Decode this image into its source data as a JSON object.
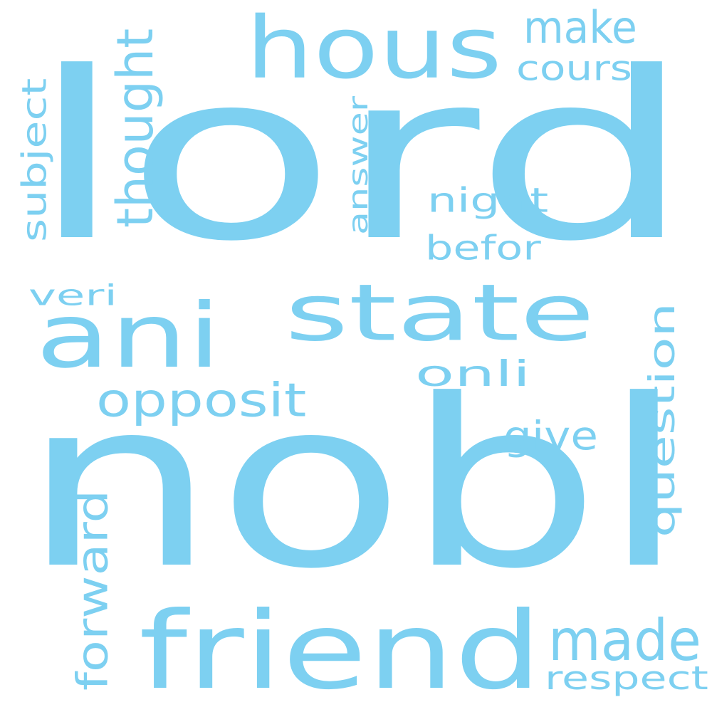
{
  "word_cloud": {
    "color": "#7dd0f1",
    "background": "#ffffff",
    "words": [
      {
        "text": "lord",
        "orientation": "horizontal"
      },
      {
        "text": "nobl",
        "orientation": "horizontal"
      },
      {
        "text": "hous",
        "orientation": "horizontal"
      },
      {
        "text": "state",
        "orientation": "horizontal"
      },
      {
        "text": "ani",
        "orientation": "horizontal"
      },
      {
        "text": "friend",
        "orientation": "horizontal"
      },
      {
        "text": "made",
        "orientation": "horizontal"
      },
      {
        "text": "opposit",
        "orientation": "horizontal"
      },
      {
        "text": "thought",
        "orientation": "vertical"
      },
      {
        "text": "question",
        "orientation": "vertical"
      },
      {
        "text": "forward",
        "orientation": "vertical"
      },
      {
        "text": "subject",
        "orientation": "vertical"
      },
      {
        "text": "answer",
        "orientation": "vertical"
      },
      {
        "text": "make",
        "orientation": "horizontal"
      },
      {
        "text": "cours",
        "orientation": "horizontal"
      },
      {
        "text": "night",
        "orientation": "horizontal"
      },
      {
        "text": "befor",
        "orientation": "horizontal"
      },
      {
        "text": "onli",
        "orientation": "horizontal"
      },
      {
        "text": "veri",
        "orientation": "horizontal"
      },
      {
        "text": "give",
        "orientation": "horizontal"
      },
      {
        "text": "respect",
        "orientation": "horizontal"
      }
    ]
  }
}
